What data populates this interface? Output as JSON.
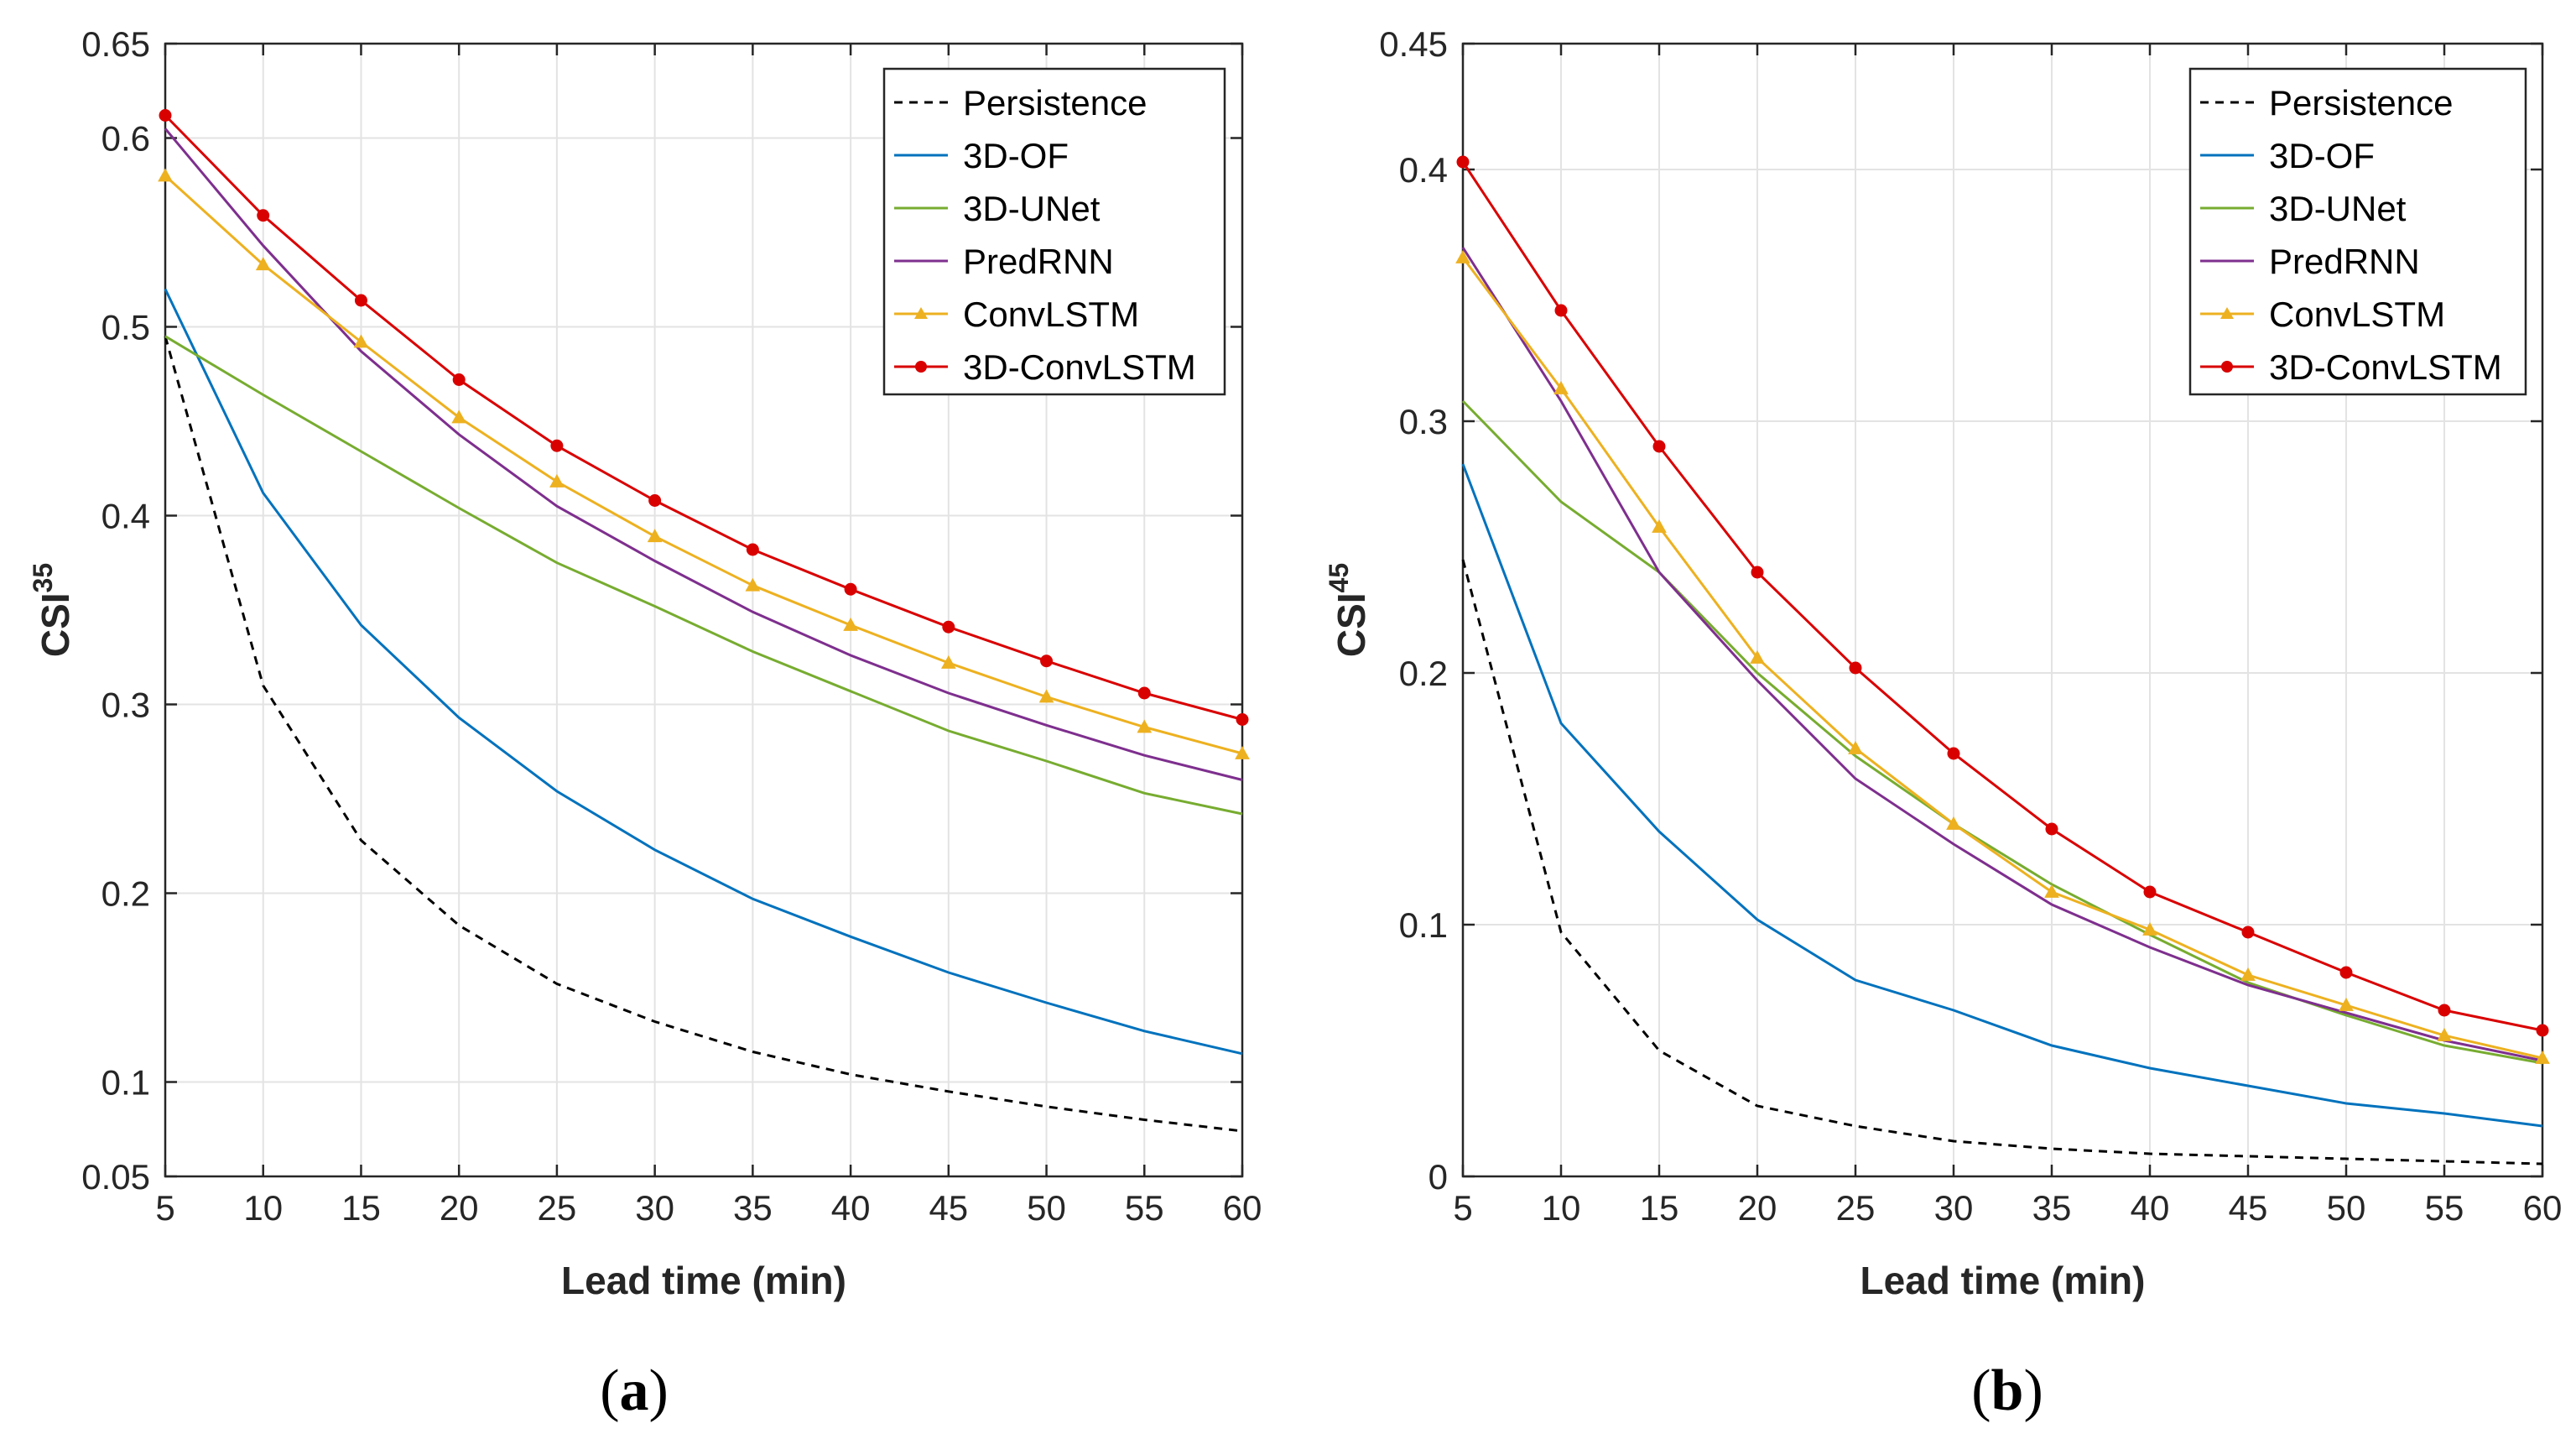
{
  "chart_data": [
    {
      "type": "line",
      "panel_label_open": "(",
      "panel_label_letter": "a",
      "panel_label_close": ")",
      "xlabel": "Lead time (min)",
      "ylabel_main": "CSI",
      "ylabel_sup": "35",
      "x": [
        5,
        10,
        15,
        20,
        25,
        30,
        35,
        40,
        45,
        50,
        55,
        60
      ],
      "xlim": [
        5,
        60
      ],
      "ylim": [
        0.05,
        0.65
      ],
      "xticks": [
        "5",
        "10",
        "15",
        "20",
        "25",
        "30",
        "35",
        "40",
        "45",
        "50",
        "55",
        "60"
      ],
      "yticks": [
        0.05,
        0.1,
        0.2,
        0.3,
        0.4,
        0.5,
        0.6,
        0.65
      ],
      "ytick_labels": [
        "0.05",
        "0.1",
        "0.2",
        "0.3",
        "0.4",
        "0.5",
        "0.6",
        "0.65"
      ],
      "grid": true,
      "legend_position": "top-right",
      "series": [
        {
          "name": "Persistence",
          "color": "#000000",
          "style": "dashed",
          "marker": "none",
          "values": [
            0.495,
            0.31,
            0.228,
            0.183,
            0.152,
            0.132,
            0.116,
            0.104,
            0.095,
            0.087,
            0.08,
            0.074
          ]
        },
        {
          "name": "3D-OF",
          "color": "#0072BD",
          "style": "solid",
          "marker": "none",
          "values": [
            0.52,
            0.412,
            0.342,
            0.293,
            0.254,
            0.223,
            0.197,
            0.177,
            0.158,
            0.142,
            0.127,
            0.115
          ]
        },
        {
          "name": "3D-UNet",
          "color": "#77AC30",
          "style": "solid",
          "marker": "none",
          "values": [
            0.495,
            0.464,
            0.434,
            0.404,
            0.375,
            0.352,
            0.328,
            0.307,
            0.286,
            0.27,
            0.253,
            0.242
          ]
        },
        {
          "name": "PredRNN",
          "color": "#7E2F8E",
          "style": "solid",
          "marker": "none",
          "values": [
            0.605,
            0.543,
            0.487,
            0.443,
            0.405,
            0.376,
            0.349,
            0.326,
            0.306,
            0.289,
            0.273,
            0.26
          ]
        },
        {
          "name": "ConvLSTM",
          "color": "#EDB120",
          "style": "solid",
          "marker": "triangle",
          "values": [
            0.58,
            0.533,
            0.492,
            0.452,
            0.418,
            0.389,
            0.363,
            0.342,
            0.322,
            0.304,
            0.288,
            0.274
          ]
        },
        {
          "name": "3D-ConvLSTM",
          "color": "#D90000",
          "style": "solid",
          "marker": "circle",
          "values": [
            0.612,
            0.559,
            0.514,
            0.472,
            0.437,
            0.408,
            0.382,
            0.361,
            0.341,
            0.323,
            0.306,
            0.292
          ]
        }
      ]
    },
    {
      "type": "line",
      "panel_label_open": "(",
      "panel_label_letter": "b",
      "panel_label_close": ")",
      "xlabel": "Lead time (min)",
      "ylabel_main": "CSI",
      "ylabel_sup": "45",
      "x": [
        5,
        10,
        15,
        20,
        25,
        30,
        35,
        40,
        45,
        50,
        55,
        60
      ],
      "xlim": [
        5,
        60
      ],
      "ylim": [
        0,
        0.45
      ],
      "xticks": [
        "5",
        "10",
        "15",
        "20",
        "25",
        "30",
        "35",
        "40",
        "45",
        "50",
        "55",
        "60"
      ],
      "yticks": [
        0,
        0.1,
        0.2,
        0.3,
        0.4,
        0.45
      ],
      "ytick_labels": [
        "0",
        "0.1",
        "0.2",
        "0.3",
        "0.4",
        "0.45"
      ],
      "grid": true,
      "legend_position": "top-right",
      "series": [
        {
          "name": "Persistence",
          "color": "#000000",
          "style": "dashed",
          "marker": "none",
          "values": [
            0.245,
            0.097,
            0.05,
            0.028,
            0.02,
            0.014,
            0.011,
            0.009,
            0.008,
            0.007,
            0.006,
            0.005
          ]
        },
        {
          "name": "3D-OF",
          "color": "#0072BD",
          "style": "solid",
          "marker": "none",
          "values": [
            0.283,
            0.18,
            0.137,
            0.102,
            0.078,
            0.066,
            0.052,
            0.043,
            0.036,
            0.029,
            0.025,
            0.02
          ]
        },
        {
          "name": "3D-UNet",
          "color": "#77AC30",
          "style": "solid",
          "marker": "none",
          "values": [
            0.308,
            0.268,
            0.24,
            0.2,
            0.167,
            0.14,
            0.116,
            0.096,
            0.077,
            0.064,
            0.052,
            0.045
          ]
        },
        {
          "name": "PredRNN",
          "color": "#7E2F8E",
          "style": "solid",
          "marker": "none",
          "values": [
            0.369,
            0.308,
            0.24,
            0.197,
            0.158,
            0.132,
            0.108,
            0.091,
            0.076,
            0.065,
            0.054,
            0.046
          ]
        },
        {
          "name": "ConvLSTM",
          "color": "#EDB120",
          "style": "solid",
          "marker": "triangle",
          "values": [
            0.365,
            0.313,
            0.258,
            0.206,
            0.17,
            0.14,
            0.113,
            0.098,
            0.08,
            0.068,
            0.056,
            0.047
          ]
        },
        {
          "name": "3D-ConvLSTM",
          "color": "#D90000",
          "style": "solid",
          "marker": "circle",
          "values": [
            0.403,
            0.344,
            0.29,
            0.24,
            0.202,
            0.168,
            0.138,
            0.113,
            0.097,
            0.081,
            0.066,
            0.058
          ]
        }
      ]
    }
  ]
}
